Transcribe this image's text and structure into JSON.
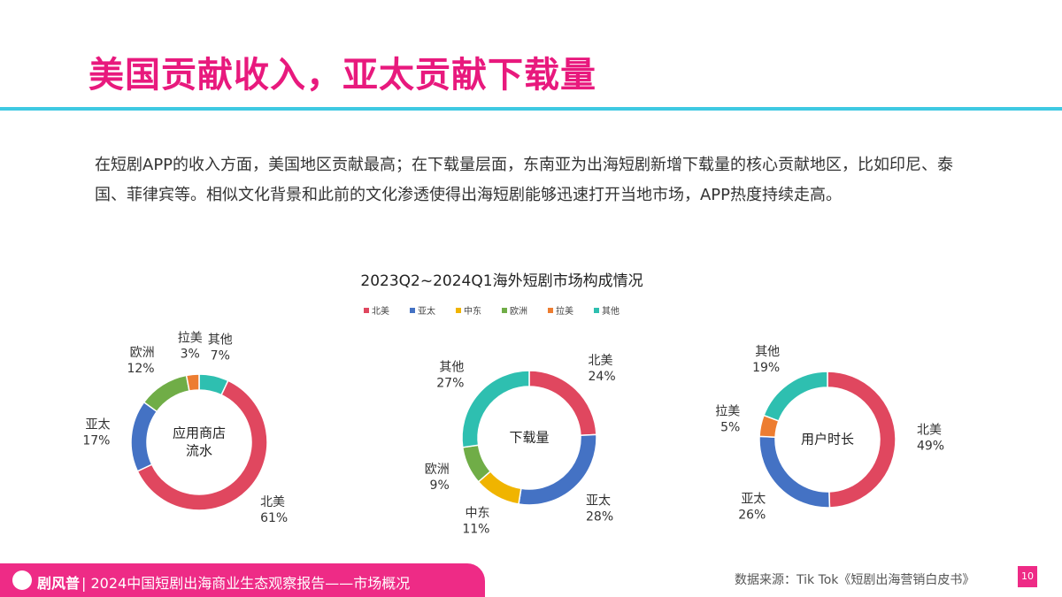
{
  "header": {
    "title": "美国贡献收入，亚太贡献下载量"
  },
  "body": {
    "text": "在短剧APP的收入方面，美国地区贡献最高；在下载量层面，东南亚为出海短剧新增下载量的核心贡献地区，比如印尼、泰国、菲律宾等。相似文化背景和此前的文化渗透使得出海短剧能够迅速打开当地市场，APP热度持续走高。"
  },
  "figure": {
    "title": "2023Q2~2024Q1海外短剧市场构成情况",
    "legend": [
      {
        "name": "北美",
        "color": "#e0475f"
      },
      {
        "name": "亚太",
        "color": "#4472c4"
      },
      {
        "name": "中东",
        "color": "#f0b400"
      },
      {
        "name": "欧洲",
        "color": "#70ad47"
      },
      {
        "name": "拉美",
        "color": "#ed7d31"
      },
      {
        "name": "其他",
        "color": "#2ebfb0"
      }
    ]
  },
  "chart_data": [
    {
      "type": "donut",
      "center_label": [
        "应用商店",
        "流水"
      ],
      "categories": [
        "其他",
        "北美",
        "亚太",
        "欧洲",
        "拉美"
      ],
      "values": [
        7,
        61,
        17,
        12,
        3
      ],
      "value_labels": [
        "7%",
        "61%",
        "17%",
        "12%",
        "3%"
      ],
      "colors": [
        "#2ebfb0",
        "#e0475f",
        "#4472c4",
        "#70ad47",
        "#ed7d31"
      ]
    },
    {
      "type": "donut",
      "center_label": [
        "下载量"
      ],
      "categories": [
        "北美",
        "亚太",
        "中东",
        "欧洲",
        "其他"
      ],
      "values": [
        24,
        28,
        11,
        9,
        27
      ],
      "value_labels": [
        "24%",
        "28%",
        "11%",
        "9%",
        "27%"
      ],
      "colors": [
        "#e0475f",
        "#4472c4",
        "#f0b400",
        "#70ad47",
        "#2ebfb0"
      ]
    },
    {
      "type": "donut",
      "center_label": [
        "用户时长"
      ],
      "categories": [
        "北美",
        "亚太",
        "拉美",
        "其他"
      ],
      "values": [
        49,
        26,
        5,
        19
      ],
      "value_labels": [
        "49%",
        "26%",
        "5%",
        "19%"
      ],
      "colors": [
        "#e0475f",
        "#4472c4",
        "#ed7d31",
        "#2ebfb0"
      ]
    }
  ],
  "footer": {
    "brand": "剧风普",
    "report": "| 2024中国短剧出海商业生态观察报告——市场概况",
    "source": "数据来源：Tik Tok《短剧出海营销白皮书》",
    "page": "10"
  }
}
